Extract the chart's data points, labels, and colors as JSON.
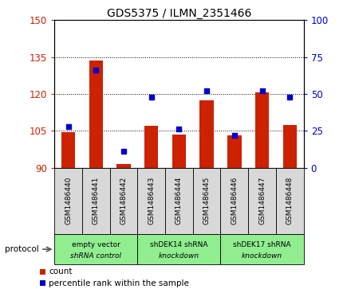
{
  "title": "GDS5375 / ILMN_2351466",
  "categories": [
    "GSM1486440",
    "GSM1486441",
    "GSM1486442",
    "GSM1486443",
    "GSM1486444",
    "GSM1486445",
    "GSM1486446",
    "GSM1486447",
    "GSM1486448"
  ],
  "count_values": [
    104.5,
    133.5,
    91.5,
    107.0,
    103.5,
    117.5,
    103.0,
    120.5,
    107.5
  ],
  "percentile_values": [
    28,
    66,
    11,
    48,
    26,
    52,
    22,
    52,
    48
  ],
  "ylim_left": [
    90,
    150
  ],
  "ylim_right": [
    0,
    100
  ],
  "yticks_left": [
    90,
    105,
    120,
    135,
    150
  ],
  "yticks_right": [
    0,
    25,
    50,
    75,
    100
  ],
  "bar_color": "#cc2200",
  "dot_color": "#0000cc",
  "plot_bg": "#ffffff",
  "label_bg": "#d8d8d8",
  "group_bg": "#90ee90",
  "group_labels": [
    "empty vector\nshRNA control",
    "shDEK14 shRNA\nknockdown",
    "shDEK17 shRNA\nknockdown"
  ],
  "group_ranges": [
    [
      0,
      3
    ],
    [
      3,
      6
    ],
    [
      6,
      9
    ]
  ],
  "protocol_label": "protocol",
  "legend_count": "count",
  "legend_percentile": "percentile rank within the sample",
  "left_tick_color": "#cc2200",
  "right_tick_color": "#0000cc",
  "bar_bottom": 90,
  "dot_size": 18,
  "bar_width": 0.5
}
